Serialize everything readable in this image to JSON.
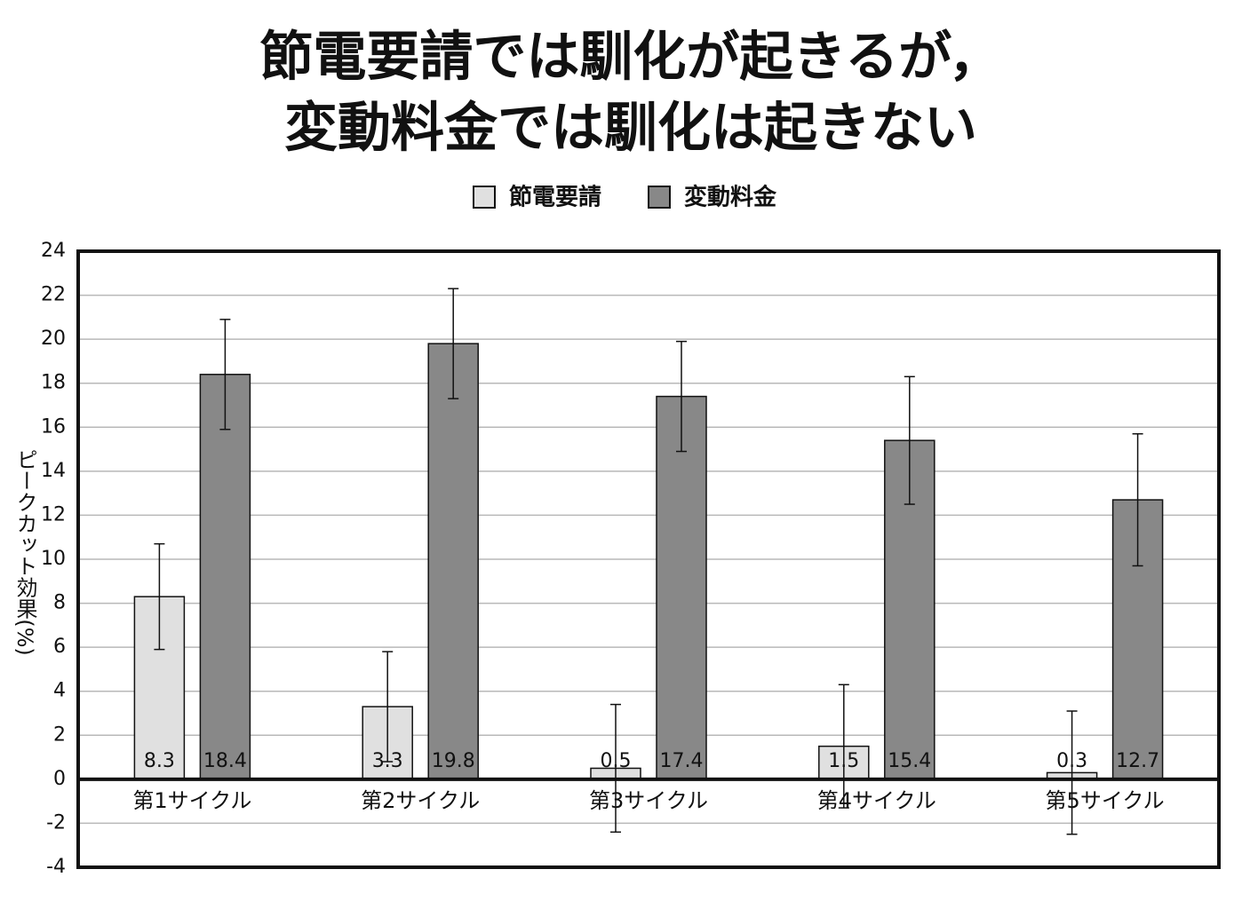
{
  "chart_data": {
    "type": "bar",
    "title": [
      "節電要請では馴化が起きるが，",
      "変動料金では馴化は起きない"
    ],
    "y_label": "ピークカット効果(%)",
    "categories": [
      "第1サイクル",
      "第2サイクル",
      "第3サイクル",
      "第4サイクル",
      "第5サイクル"
    ],
    "series": [
      {
        "name": "節電要請",
        "color": "#e0e0e0",
        "values": [
          8.3,
          3.3,
          0.5,
          1.5,
          0.3
        ],
        "errors": [
          2.4,
          2.5,
          2.9,
          2.8,
          2.8
        ]
      },
      {
        "name": "変動料金",
        "color": "#888888",
        "values": [
          18.4,
          19.8,
          17.4,
          15.4,
          12.7
        ],
        "errors": [
          2.5,
          2.5,
          2.5,
          2.9,
          3.0
        ]
      }
    ],
    "ylim": [
      -4,
      24
    ],
    "yticks": [
      -4,
      -2,
      0,
      2,
      4,
      6,
      8,
      10,
      12,
      14,
      16,
      18,
      20,
      22,
      24
    ],
    "grid": true,
    "legend": "top"
  }
}
